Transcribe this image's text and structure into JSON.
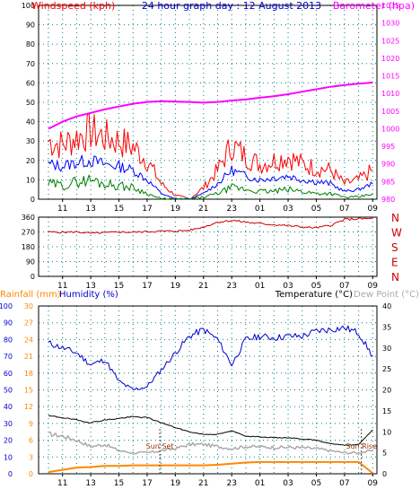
{
  "colors": {
    "wind": "#ff0000",
    "gust": "#ff0000",
    "avg": "#0000ff",
    "low": "#008000",
    "baro": "#ff00ff",
    "dir": "#cc0000",
    "dirlabel": "#cc0000",
    "humidity": "#0000cc",
    "temperature": "#000000",
    "dewpoint": "#aaaaaa",
    "rain": "#ff8800",
    "title": "#0000cc",
    "grid": "#008080"
  },
  "chart_data": [
    {
      "type": "line",
      "title": "24 hour graph day : 12 August 2013",
      "left_axis": {
        "label": "Windspeed (kph)",
        "ticks": [
          0,
          10,
          20,
          30,
          40,
          50,
          60,
          70,
          80,
          90,
          100
        ],
        "ylim": [
          0,
          100
        ]
      },
      "right_axis": {
        "label": "Barometer (hpa)",
        "ticks": [
          980,
          985,
          990,
          995,
          1000,
          1005,
          1010,
          1015,
          1020,
          1025,
          1030,
          1035
        ],
        "ylim": [
          980,
          1035
        ]
      },
      "x_ticks": [
        "11",
        "13",
        "15",
        "17",
        "19",
        "21",
        "23",
        "01",
        "03",
        "05",
        "07",
        "09"
      ],
      "x": [
        10,
        11,
        12,
        13,
        14,
        15,
        16,
        17,
        18,
        19,
        20,
        21,
        22,
        23,
        24,
        25,
        26,
        27,
        28,
        29,
        30,
        31,
        32,
        33
      ],
      "series": [
        {
          "name": "Windspeed (kph)",
          "kind": "gust",
          "values": [
            30,
            28,
            32,
            35,
            32,
            30,
            27,
            20,
            8,
            2,
            0,
            6,
            15,
            28,
            22,
            18,
            20,
            22,
            18,
            16,
            15,
            8,
            10,
            15
          ]
        },
        {
          "kind": "average",
          "values": [
            18,
            17,
            19,
            20,
            18,
            17,
            15,
            10,
            3,
            0,
            0,
            3,
            8,
            15,
            12,
            10,
            11,
            12,
            10,
            9,
            8,
            4,
            5,
            8
          ]
        },
        {
          "kind": "low",
          "values": [
            8,
            7,
            9,
            10,
            8,
            7,
            6,
            3,
            0,
            0,
            0,
            1,
            3,
            6,
            5,
            4,
            4,
            5,
            4,
            3,
            3,
            1,
            1,
            3
          ]
        },
        {
          "name": "Barometer (hpa)",
          "values": [
            1000,
            1002,
            1003.5,
            1004.5,
            1005.5,
            1006.3,
            1007.1,
            1007.6,
            1007.8,
            1007.7,
            1007.6,
            1007.4,
            1007.6,
            1008.0,
            1008.3,
            1008.8,
            1009.2,
            1009.8,
            1010.5,
            1011.2,
            1011.9,
            1012.4,
            1012.8,
            1013.1
          ]
        }
      ]
    },
    {
      "type": "line",
      "left_axis": {
        "ticks": [
          0,
          90,
          180,
          270,
          360
        ],
        "ylim": [
          0,
          360
        ]
      },
      "right_labels": [
        "N",
        "W",
        "S",
        "E",
        "N"
      ],
      "x_ticks": [
        "11",
        "13",
        "15",
        "17",
        "19",
        "21",
        "23",
        "01",
        "03",
        "05",
        "07",
        "09"
      ],
      "x": [
        10,
        11,
        12,
        13,
        14,
        15,
        16,
        17,
        18,
        19,
        20,
        21,
        22,
        23,
        24,
        25,
        26,
        27,
        28,
        29,
        30,
        31,
        32,
        33
      ],
      "series": [
        {
          "kind": "direction",
          "values": [
            270,
            268,
            270,
            262,
            265,
            270,
            268,
            272,
            275,
            275,
            280,
            300,
            330,
            340,
            330,
            320,
            315,
            308,
            300,
            295,
            310,
            345,
            350,
            350
          ]
        }
      ]
    },
    {
      "type": "line",
      "labels": {
        "rain": "Rainfall (mm)",
        "humidity": "Humidity (%)",
        "temperature": "Temperature (°C)",
        "dewpoint": "Dew Point (°C)"
      },
      "annotations": [
        "Sun Set",
        "Sun Rise"
      ],
      "humidity_axis": {
        "ticks": [
          0,
          10,
          20,
          30,
          40,
          50,
          60,
          70,
          80,
          90,
          100
        ],
        "ylim": [
          0,
          100
        ]
      },
      "rain_axis": {
        "ticks": [
          0,
          3,
          6,
          9,
          12,
          15,
          18,
          21,
          24,
          27,
          30
        ],
        "ylim": [
          0,
          30
        ]
      },
      "temp_axis": {
        "ticks": [
          0,
          5,
          10,
          15,
          20,
          25,
          30,
          35,
          40
        ],
        "ylim": [
          0,
          40
        ]
      },
      "x_ticks": [
        "11",
        "13",
        "15",
        "17",
        "19",
        "21",
        "23",
        "01",
        "03",
        "05",
        "07",
        "09"
      ],
      "x": [
        10,
        11,
        12,
        13,
        14,
        15,
        16,
        17,
        18,
        19,
        20,
        21,
        22,
        23,
        24,
        25,
        26,
        27,
        28,
        29,
        30,
        31,
        32,
        33
      ],
      "series": [
        {
          "name": "Humidity (%)",
          "values": [
            78,
            75,
            72,
            65,
            68,
            55,
            50,
            52,
            62,
            72,
            82,
            86,
            80,
            65,
            80,
            82,
            81,
            82,
            82,
            85,
            86,
            87,
            84,
            70
          ]
        },
        {
          "name": "Temperature (°C)",
          "values": [
            13.8,
            13.4,
            12.8,
            12.2,
            12.8,
            13.2,
            13.6,
            13.4,
            12.2,
            11.0,
            10.0,
            9.4,
            9.4,
            10.2,
            9.0,
            8.8,
            8.6,
            8.6,
            8.3,
            8.0,
            7.2,
            6.8,
            7.0,
            10.5
          ]
        },
        {
          "name": "Dew Point (°C)",
          "values": [
            9.5,
            9.0,
            8.0,
            6.5,
            7.0,
            5.5,
            5.0,
            5.0,
            5.5,
            6.0,
            7.0,
            7.0,
            6.5,
            6.0,
            6.5,
            6.4,
            6.3,
            6.3,
            6.2,
            6.0,
            5.5,
            5.0,
            5.0,
            5.5
          ]
        },
        {
          "name": "Rainfall (mm)",
          "values": [
            0.3,
            0.7,
            1.1,
            1.2,
            1.4,
            1.4,
            1.5,
            1.5,
            1.5,
            1.5,
            1.5,
            1.5,
            1.6,
            1.8,
            2.0,
            2.1,
            2.1,
            2.1,
            2.1,
            2.1,
            2.1,
            2.1,
            2.1,
            0.1
          ]
        }
      ]
    }
  ]
}
